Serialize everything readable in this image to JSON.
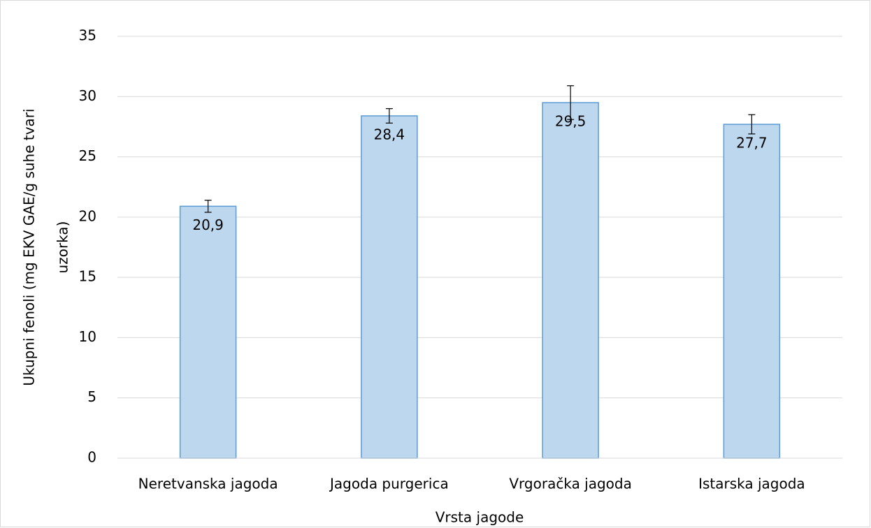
{
  "chart_data": {
    "type": "bar",
    "x_label": "Vrsta jagode",
    "y_label": [
      "Ukupni fenoli (mg EKV GAE/g suhe tvari",
      "uzorka)"
    ],
    "categories": [
      "Neretvanska jagoda",
      "Jagoda purgerica",
      "Vrgoračka jagoda",
      "Istarska jagoda"
    ],
    "values": [
      20.9,
      28.4,
      29.5,
      27.7
    ],
    "value_labels": [
      "20,9",
      "28,4",
      "29,5",
      "27,7"
    ],
    "errors": [
      0.5,
      0.6,
      1.4,
      0.8
    ],
    "color": "#bdd7ee",
    "edge_color": "#5b9bd5",
    "ylim": [
      0,
      35
    ],
    "yticks": [
      0,
      5,
      10,
      15,
      20,
      25,
      30,
      35
    ],
    "grid": true
  }
}
